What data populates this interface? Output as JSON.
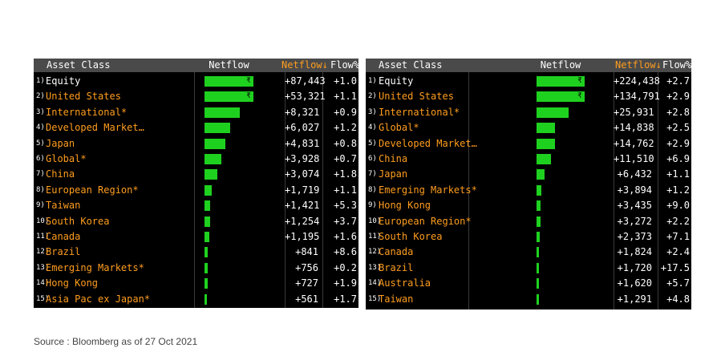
{
  "colors": {
    "bar": "#1fd11f",
    "header_bg": "#4a4a4a",
    "accent": "#ff9d1e"
  },
  "panels": [
    {
      "header": {
        "asset": "Asset Class",
        "netflow": "Netflow",
        "netflow_sorted": "Netflow↓",
        "flow_pct": "Flow%"
      },
      "rows": [
        {
          "rank": "1)",
          "name": "Equity",
          "value": "+87,443",
          "pct": "+1.0",
          "bar_fraction": 1.0,
          "highlight": true,
          "marker": "₹"
        },
        {
          "rank": "2)",
          "name": "United States",
          "value": "+53,321",
          "pct": "+1.1",
          "bar_fraction": 1.0,
          "highlight": false,
          "marker": "₹"
        },
        {
          "rank": "3)",
          "name": "International*",
          "value": "+8,321",
          "pct": "+0.9",
          "bar_fraction": 0.72,
          "highlight": false
        },
        {
          "rank": "4)",
          "name": "Developed Market…",
          "value": "+6,027",
          "pct": "+1.2",
          "bar_fraction": 0.52,
          "highlight": false
        },
        {
          "rank": "5)",
          "name": "Japan",
          "value": "+4,831",
          "pct": "+0.8",
          "bar_fraction": 0.42,
          "highlight": false
        },
        {
          "rank": "6)",
          "name": "Global*",
          "value": "+3,928",
          "pct": "+0.7",
          "bar_fraction": 0.34,
          "highlight": false
        },
        {
          "rank": "7)",
          "name": "China",
          "value": "+3,074",
          "pct": "+1.8",
          "bar_fraction": 0.27,
          "highlight": false
        },
        {
          "rank": "8)",
          "name": "European Region*",
          "value": "+1,719",
          "pct": "+1.1",
          "bar_fraction": 0.15,
          "highlight": false
        },
        {
          "rank": "9)",
          "name": "Taiwan",
          "value": "+1,421",
          "pct": "+5.3",
          "bar_fraction": 0.12,
          "highlight": false
        },
        {
          "rank": "10)",
          "name": "South Korea",
          "value": "+1,254",
          "pct": "+3.7",
          "bar_fraction": 0.11,
          "highlight": false
        },
        {
          "rank": "11)",
          "name": "Canada",
          "value": "+1,195",
          "pct": "+1.6",
          "bar_fraction": 0.1,
          "highlight": false
        },
        {
          "rank": "12)",
          "name": "Brazil",
          "value": "+841",
          "pct": "+8.6",
          "bar_fraction": 0.07,
          "highlight": false
        },
        {
          "rank": "13)",
          "name": "Emerging Markets*",
          "value": "+756",
          "pct": "+0.2",
          "bar_fraction": 0.065,
          "highlight": false
        },
        {
          "rank": "14)",
          "name": "Hong Kong",
          "value": "+727",
          "pct": "+1.9",
          "bar_fraction": 0.06,
          "highlight": false
        },
        {
          "rank": "15)",
          "name": "Asia Pac ex Japan*",
          "value": "+561",
          "pct": "+1.7",
          "bar_fraction": 0.05,
          "highlight": false
        }
      ]
    },
    {
      "header": {
        "asset": "Asset Class",
        "netflow": "Netflow",
        "netflow_sorted": "Netflow↓",
        "flow_pct": "Flow%"
      },
      "rows": [
        {
          "rank": "1)",
          "name": "Equity",
          "value": "+224,438",
          "pct": "+2.7",
          "bar_fraction": 1.0,
          "highlight": true,
          "marker": "₹"
        },
        {
          "rank": "2)",
          "name": "United States",
          "value": "+134,791",
          "pct": "+2.9",
          "bar_fraction": 1.0,
          "highlight": false,
          "marker": "₹"
        },
        {
          "rank": "3)",
          "name": "International*",
          "value": "+25,931",
          "pct": "+2.8",
          "bar_fraction": 0.66,
          "highlight": false
        },
        {
          "rank": "4)",
          "name": "Global*",
          "value": "+14,838",
          "pct": "+2.5",
          "bar_fraction": 0.38,
          "highlight": false
        },
        {
          "rank": "5)",
          "name": "Developed Market…",
          "value": "+14,762",
          "pct": "+2.9",
          "bar_fraction": 0.38,
          "highlight": false
        },
        {
          "rank": "6)",
          "name": "China",
          "value": "+11,510",
          "pct": "+6.9",
          "bar_fraction": 0.3,
          "highlight": false
        },
        {
          "rank": "7)",
          "name": "Japan",
          "value": "+6,432",
          "pct": "+1.1",
          "bar_fraction": 0.17,
          "highlight": false
        },
        {
          "rank": "8)",
          "name": "Emerging Markets*",
          "value": "+3,894",
          "pct": "+1.2",
          "bar_fraction": 0.1,
          "highlight": false
        },
        {
          "rank": "9)",
          "name": "Hong Kong",
          "value": "+3,435",
          "pct": "+9.0",
          "bar_fraction": 0.09,
          "highlight": false
        },
        {
          "rank": "10)",
          "name": "European Region*",
          "value": "+3,272",
          "pct": "+2.2",
          "bar_fraction": 0.085,
          "highlight": false
        },
        {
          "rank": "11)",
          "name": "South Korea",
          "value": "+2,373",
          "pct": "+7.1",
          "bar_fraction": 0.06,
          "highlight": false
        },
        {
          "rank": "12)",
          "name": "Canada",
          "value": "+1,824",
          "pct": "+2.4",
          "bar_fraction": 0.05,
          "highlight": false
        },
        {
          "rank": "13)",
          "name": "Brazil",
          "value": "+1,720",
          "pct": "+17.5",
          "bar_fraction": 0.045,
          "highlight": false
        },
        {
          "rank": "14)",
          "name": "Australia",
          "value": "+1,620",
          "pct": "+5.7",
          "bar_fraction": 0.04,
          "highlight": false
        },
        {
          "rank": "15)",
          "name": "Taiwan",
          "value": "+1,291",
          "pct": "+4.8",
          "bar_fraction": 0.035,
          "highlight": false
        }
      ]
    }
  ],
  "source": "Source : Bloomberg as of 27 Oct 2021"
}
